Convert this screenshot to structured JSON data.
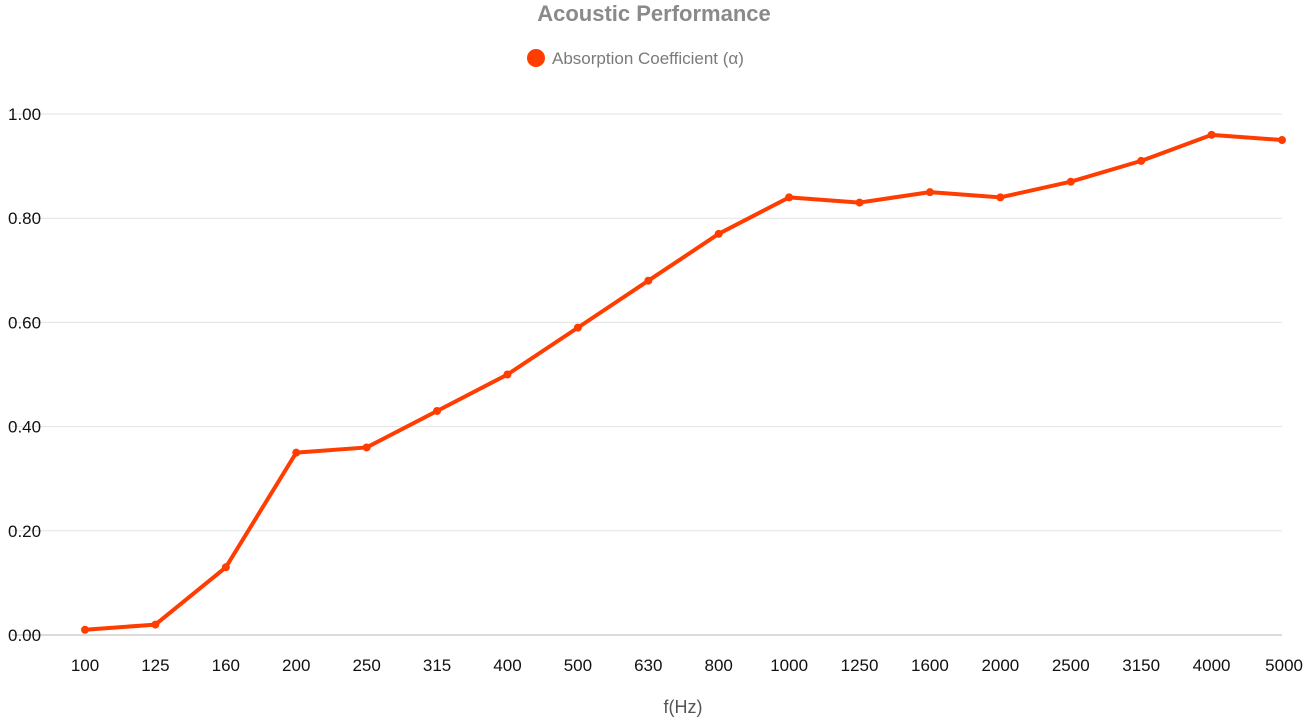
{
  "chart_data": {
    "type": "line",
    "title": "Acoustic Performance",
    "xlabel": "f(Hz)",
    "ylabel": "",
    "categories": [
      "100",
      "125",
      "160",
      "200",
      "250",
      "315",
      "400",
      "500",
      "630",
      "800",
      "1000",
      "1250",
      "1600",
      "2000",
      "2500",
      "3150",
      "4000",
      "5000"
    ],
    "series": [
      {
        "name": "Absorption Coefficient (α)",
        "values": [
          0.01,
          0.02,
          0.13,
          0.35,
          0.36,
          0.43,
          0.5,
          0.59,
          0.68,
          0.77,
          0.84,
          0.83,
          0.85,
          0.84,
          0.87,
          0.91,
          0.96,
          0.95
        ]
      }
    ],
    "ylim": [
      0,
      1
    ],
    "yticks": [
      "0.00",
      "0.20",
      "0.40",
      "0.60",
      "0.80",
      "1.00"
    ],
    "legend": "top-center",
    "grid": true,
    "colors": {
      "series": "#ff3d00",
      "title": "#8a8a8a",
      "grid": "#e3e3e3"
    }
  }
}
